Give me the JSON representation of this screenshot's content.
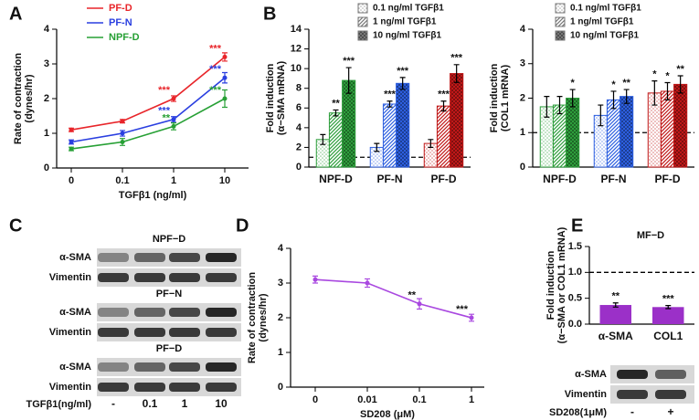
{
  "chart_data": [
    {
      "type": "line",
      "panel_label": "A",
      "categories": [
        "0",
        "0.1",
        "1",
        "10"
      ],
      "series": [
        {
          "name": "PF-D",
          "color": "#e8252a",
          "values": [
            1.1,
            1.35,
            2.0,
            3.2
          ],
          "errors": [
            0.05,
            0.05,
            0.08,
            0.12
          ],
          "annotations": [
            null,
            null,
            "***",
            "***"
          ]
        },
        {
          "name": "PF-N",
          "color": "#2a3fe0",
          "values": [
            0.75,
            1.0,
            1.4,
            2.6
          ],
          "errors": [
            0.06,
            0.08,
            0.08,
            0.15
          ],
          "annotations": [
            null,
            null,
            "***",
            "***"
          ]
        },
        {
          "name": "NPF-D",
          "color": "#27a035",
          "values": [
            0.55,
            0.75,
            1.2,
            2.0
          ],
          "errors": [
            0.05,
            0.1,
            0.1,
            0.25
          ],
          "annotations": [
            null,
            null,
            "**",
            "***"
          ]
        }
      ],
      "xlabel": "TGFβ1 (ng/ml)",
      "ylabel": [
        "Rate of contraction",
        "(dynes/hr)"
      ],
      "ylim": [
        0,
        4
      ],
      "yticks": [
        0,
        1,
        2,
        3,
        4
      ],
      "legend": "upper left"
    },
    {
      "type": "bar",
      "panel_label": "B",
      "categories": [
        "NPF-D",
        "PF-N",
        "PF-D"
      ],
      "category_colors": [
        "#2e9e3c",
        "#2d5fe0",
        "#c01818"
      ],
      "series": [
        {
          "name": "0.1 ng/ml TGFβ1",
          "values": [
            2.8,
            2.0,
            2.4
          ],
          "errors": [
            0.5,
            0.4,
            0.4
          ],
          "annotations": [
            null,
            null,
            null
          ]
        },
        {
          "name": "1 ng/ml TGFβ1",
          "values": [
            5.5,
            6.4,
            6.2
          ],
          "errors": [
            0.3,
            0.3,
            0.5
          ],
          "annotations": [
            "**",
            "***",
            "***"
          ]
        },
        {
          "name": "10 ng/ml  TGFβ1",
          "values": [
            8.8,
            8.5,
            9.5
          ],
          "errors": [
            1.3,
            0.6,
            0.9
          ],
          "annotations": [
            "***",
            "***",
            "***"
          ]
        }
      ],
      "ylabel": [
        "Fold induction",
        "(α−SMA mRNA)"
      ],
      "ylim": [
        0,
        14
      ],
      "yticks": [
        0,
        2,
        4,
        6,
        8,
        10,
        12,
        14
      ],
      "reference_line": 1,
      "legend": "upper center"
    },
    {
      "type": "bar",
      "categories": [
        "NPF-D",
        "PF-N",
        "PF-D"
      ],
      "category_colors": [
        "#2e9e3c",
        "#2d5fe0",
        "#c01818"
      ],
      "series": [
        {
          "name": "0.1 ng/ml TGFβ1",
          "values": [
            1.75,
            1.5,
            2.15
          ],
          "errors": [
            0.3,
            0.3,
            0.35
          ],
          "annotations": [
            null,
            null,
            "*"
          ]
        },
        {
          "name": "1 ng/ml TGFβ1",
          "values": [
            1.8,
            1.95,
            2.2
          ],
          "errors": [
            0.25,
            0.25,
            0.25
          ],
          "annotations": [
            null,
            "*",
            "*"
          ]
        },
        {
          "name": "10 ng/ml TGFβ1",
          "values": [
            2.0,
            2.05,
            2.4
          ],
          "errors": [
            0.25,
            0.2,
            0.25
          ],
          "annotations": [
            "*",
            "**",
            "**"
          ]
        }
      ],
      "ylabel": [
        "Fold induction",
        "(COL1 mRNA)"
      ],
      "ylim": [
        0,
        4
      ],
      "yticks": [
        0,
        1,
        2,
        3,
        4
      ],
      "reference_line": 1,
      "legend": "upper center"
    },
    {
      "type": "line",
      "panel_label": "D",
      "categories": [
        "0",
        "0.01",
        "0.1",
        "1"
      ],
      "series": [
        {
          "color": "#a948e0",
          "values": [
            3.1,
            3.0,
            2.4,
            2.0
          ],
          "errors": [
            0.1,
            0.12,
            0.15,
            0.1
          ],
          "annotations": [
            null,
            null,
            "**",
            "***"
          ]
        }
      ],
      "xlabel": "SD208 (μM)",
      "ylabel": [
        "Rate of contraction",
        "(dynes/hr)"
      ],
      "ylim": [
        0,
        4
      ],
      "yticks": [
        0,
        1,
        2,
        3,
        4
      ]
    },
    {
      "type": "bar",
      "panel_label": "E",
      "title": "MF−D",
      "categories": [
        "α-SMA",
        "COL1"
      ],
      "values": [
        0.37,
        0.33
      ],
      "errors": [
        0.04,
        0.03
      ],
      "annotations": [
        "**",
        "***"
      ],
      "color": "#9b30c8",
      "ylabel": [
        "Fold induction",
        "(α−SMA or COL1 mRNA)"
      ],
      "ylim": [
        0,
        1.5
      ],
      "yticks": [
        {
          "value": 0,
          "label": "0.0"
        },
        0.5,
        {
          "value": 1,
          "label": "1.0"
        },
        1.5
      ],
      "reference_line": 1
    }
  ],
  "blots": [
    {
      "panel_label": "C",
      "groups": [
        {
          "title": "NPF−D",
          "rows": [
            "α-SMA",
            "Vimentin"
          ]
        },
        {
          "title": "PF−N",
          "rows": [
            "α-SMA",
            "Vimentin"
          ]
        },
        {
          "title": "PF−D",
          "rows": [
            "α-SMA",
            "Vimentin"
          ]
        }
      ],
      "treatment": "TGFβ1(ng/ml)",
      "lanes": [
        "-",
        "0.1",
        "1",
        "10"
      ]
    },
    {
      "groups": [
        {
          "rows": [
            "α-SMA",
            "Vimentin"
          ]
        }
      ],
      "treatment": "SD208(1μM)",
      "lanes": [
        "-",
        "+"
      ]
    }
  ]
}
